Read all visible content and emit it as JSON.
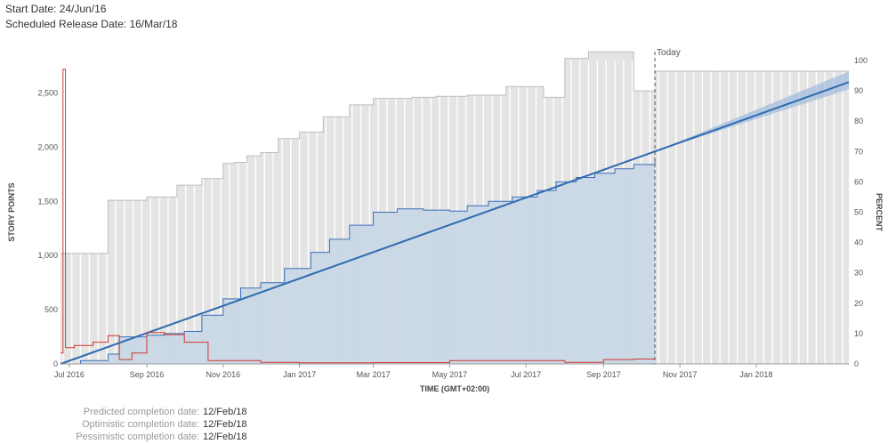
{
  "header": {
    "start_label": "Start Date:",
    "start_value": "24/Jun/16",
    "release_label": "Scheduled Release Date:",
    "release_value": "16/Mar/18"
  },
  "chart_data": {
    "type": "area",
    "xlabel": "TIME (GMT+02:00)",
    "ylabel": "STORY POINTS",
    "y2label": "PERCENT",
    "ylim": [
      0,
      2800
    ],
    "y2lim": [
      0,
      100
    ],
    "x_range": [
      "2016-06-24",
      "2018-03-16"
    ],
    "x_ticks": [
      "Jul 2016",
      "Sep 2016",
      "Nov 2016",
      "Jan 2017",
      "Mar 2017",
      "May 2017",
      "Jul 2017",
      "Sep 2017",
      "Nov 2017",
      "Jan 2018"
    ],
    "y_ticks": [
      "0",
      "500",
      "1,000",
      "1,500",
      "2,000",
      "2,500"
    ],
    "y2_ticks": [
      "0",
      "10",
      "20",
      "30",
      "40",
      "50",
      "60",
      "70",
      "80",
      "90",
      "100"
    ],
    "today_label": "Today",
    "today_date": "2017-10-12",
    "grid": true,
    "colors": {
      "scope": "#e4e4e4",
      "scope_line": "#bdbdbd",
      "completed": "#c9d7e6",
      "completed_line": "#3a6fb7",
      "trend": "#2e6bb0",
      "forecast_band": "#9fbadb",
      "unestimated": "#d0392b",
      "today_line": "#555555"
    },
    "series": [
      {
        "key": "scope",
        "x": [
          "2016-06-24",
          "2016-07-01",
          "2016-07-10",
          "2016-08-01",
          "2016-08-15",
          "2016-09-01",
          "2016-09-15",
          "2016-09-25",
          "2016-10-05",
          "2016-10-15",
          "2016-10-25",
          "2016-11-01",
          "2016-11-10",
          "2016-11-20",
          "2016-12-01",
          "2016-12-15",
          "2017-01-01",
          "2017-01-20",
          "2017-02-10",
          "2017-03-01",
          "2017-04-01",
          "2017-04-20",
          "2017-05-15",
          "2017-06-01",
          "2017-06-15",
          "2017-07-01",
          "2017-07-15",
          "2017-08-01",
          "2017-08-20",
          "2017-09-15",
          "2017-09-25",
          "2017-10-12"
        ],
        "y": [
          1020,
          1020,
          1020,
          1510,
          1510,
          1540,
          1540,
          1650,
          1650,
          1710,
          1710,
          1850,
          1860,
          1920,
          1950,
          2080,
          2140,
          2280,
          2390,
          2450,
          2460,
          2470,
          2480,
          2480,
          2560,
          2560,
          2460,
          2820,
          2880,
          2880,
          2520,
          2520
        ]
      },
      {
        "key": "scope_forecast",
        "x": [
          "2017-10-12",
          "2018-03-16"
        ],
        "y": [
          2700,
          2700
        ]
      },
      {
        "key": "completed",
        "x": [
          "2016-06-24",
          "2016-07-10",
          "2016-08-01",
          "2016-08-10",
          "2016-08-20",
          "2016-09-01",
          "2016-09-15",
          "2016-10-01",
          "2016-10-15",
          "2016-11-01",
          "2016-11-15",
          "2016-12-01",
          "2016-12-20",
          "2017-01-10",
          "2017-01-25",
          "2017-02-10",
          "2017-03-01",
          "2017-03-20",
          "2017-04-10",
          "2017-05-01",
          "2017-05-15",
          "2017-06-01",
          "2017-06-20",
          "2017-07-10",
          "2017-07-25",
          "2017-08-10",
          "2017-08-25",
          "2017-09-10",
          "2017-09-25",
          "2017-10-12"
        ],
        "y": [
          0,
          30,
          90,
          250,
          250,
          265,
          280,
          300,
          450,
          600,
          700,
          750,
          880,
          1030,
          1150,
          1280,
          1400,
          1430,
          1420,
          1410,
          1460,
          1500,
          1540,
          1600,
          1680,
          1720,
          1760,
          1800,
          1840,
          1900
        ]
      },
      {
        "key": "trend",
        "x": [
          "2016-06-24",
          "2018-03-16"
        ],
        "y": [
          0,
          2600
        ]
      },
      {
        "key": "unestimated",
        "x": [
          "2016-06-24",
          "2016-06-26",
          "2016-06-28",
          "2016-07-05",
          "2016-07-20",
          "2016-08-01",
          "2016-08-10",
          "2016-08-20",
          "2016-09-01",
          "2016-09-15",
          "2016-10-01",
          "2016-10-20",
          "2016-11-01",
          "2016-12-01",
          "2017-01-01",
          "2017-03-01",
          "2017-05-01",
          "2017-07-01",
          "2017-08-01",
          "2017-09-01",
          "2017-09-25",
          "2017-10-12"
        ],
        "y": [
          100,
          2720,
          150,
          170,
          200,
          260,
          40,
          100,
          290,
          270,
          200,
          30,
          30,
          15,
          10,
          12,
          30,
          30,
          15,
          40,
          45,
          45
        ]
      }
    ]
  },
  "footer": [
    {
      "label": "Predicted completion date:",
      "value": "12/Feb/18"
    },
    {
      "label": "Optimistic completion date:",
      "value": "12/Feb/18"
    },
    {
      "label": "Pessimistic completion date:",
      "value": "12/Feb/18"
    }
  ]
}
